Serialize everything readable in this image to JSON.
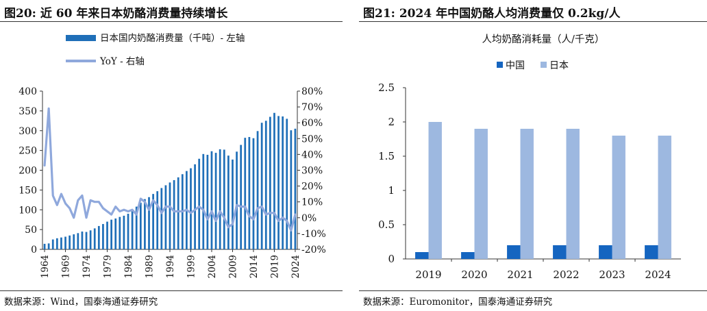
{
  "left": {
    "figure_title": "图20:  近 60 年来日本奶酪消费量持续增长",
    "source": "数据来源：Wind，国泰海通证券研究"
  },
  "right": {
    "figure_title": "图21:  2024 年中国奶酪人均消费量仅 0.2kg/人",
    "source": "数据来源：Euromonitor，国泰海通证券研究"
  },
  "colors": {
    "bar_dark": "#1f6fb8",
    "bar_light": "#9db8e0",
    "line": "#8fa8dc",
    "china_bar": "#1565c0"
  },
  "chart_data": [
    {
      "type": "bar",
      "title": "",
      "xlabel": "",
      "ylabel": "",
      "ylim": [
        0,
        400
      ],
      "y2lim": [
        -0.2,
        0.8
      ],
      "yticks": [
        "0",
        "50",
        "100",
        "150",
        "200",
        "250",
        "300",
        "350",
        "400"
      ],
      "y2ticks": [
        "-20%",
        "-10%",
        "0%",
        "10%",
        "20%",
        "30%",
        "40%",
        "50%",
        "60%",
        "70%",
        "80%"
      ],
      "xtick_labels": [
        "1964",
        "1969",
        "1974",
        "1979",
        "1984",
        "1989",
        "1994",
        "1999",
        "2004",
        "2009",
        "2014",
        "2019",
        "2024"
      ],
      "legend": "top-left",
      "x": [
        1964,
        1965,
        1966,
        1967,
        1968,
        1969,
        1970,
        1971,
        1972,
        1973,
        1974,
        1975,
        1976,
        1977,
        1978,
        1979,
        1980,
        1981,
        1982,
        1983,
        1984,
        1985,
        1986,
        1987,
        1988,
        1989,
        1990,
        1991,
        1992,
        1993,
        1994,
        1995,
        1996,
        1997,
        1998,
        1999,
        2000,
        2001,
        2002,
        2003,
        2004,
        2005,
        2006,
        2007,
        2008,
        2009,
        2010,
        2011,
        2012,
        2013,
        2014,
        2015,
        2016,
        2017,
        2018,
        2019,
        2020,
        2021,
        2022,
        2023,
        2024
      ],
      "series": [
        {
          "name": "日本国内奶酪消费量（千吨）- 左轴",
          "type": "bar",
          "axis": "left",
          "values": [
            14,
            15,
            25,
            28,
            30,
            32,
            35,
            38,
            41,
            45,
            44,
            48,
            53,
            59,
            64,
            70,
            75,
            78,
            82,
            85,
            90,
            98,
            108,
            118,
            127,
            132,
            140,
            147,
            155,
            162,
            169,
            175,
            182,
            190,
            198,
            205,
            215,
            229,
            241,
            239,
            248,
            244,
            253,
            252,
            237,
            227,
            247,
            264,
            282,
            284,
            281,
            299,
            320,
            325,
            335,
            345,
            337,
            336,
            330,
            301,
            305
          ],
          "color": "#1f6fb8"
        },
        {
          "name": "YoY - 右轴",
          "type": "line",
          "axis": "right",
          "values": [
            0.33,
            0.69,
            0.14,
            0.08,
            0.15,
            0.09,
            0.06,
            0.0,
            0.11,
            0.14,
            0.0,
            0.11,
            0.1,
            0.1,
            0.06,
            0.04,
            0.02,
            0.07,
            0.04,
            0.05,
            0.04,
            0.05,
            0.02,
            0.12,
            0.1,
            0.05,
            0.11,
            0.08,
            0.03,
            0.07,
            0.07,
            0.04,
            0.04,
            0.04,
            0.05,
            0.03,
            0.05,
            0.07,
            0.05,
            -0.01,
            0.04,
            -0.02,
            0.04,
            0.0,
            -0.06,
            -0.04,
            0.08,
            0.07,
            0.07,
            0.01,
            -0.01,
            0.06,
            0.07,
            0.02,
            0.03,
            0.03,
            -0.02,
            0.0,
            -0.02,
            -0.08,
            0.02
          ],
          "color": "#8fa8dc"
        }
      ]
    },
    {
      "type": "bar",
      "title": "人均奶酪消耗量（人/千克）",
      "xlabel": "",
      "ylabel": "",
      "ylim": [
        0,
        2.5
      ],
      "yticks": [
        "0",
        "0.5",
        "1",
        "1.5",
        "2",
        "2.5"
      ],
      "legend": "top",
      "categories": [
        "2019",
        "2020",
        "2021",
        "2022",
        "2023",
        "2024"
      ],
      "series": [
        {
          "name": "中国",
          "values": [
            0.1,
            0.1,
            0.2,
            0.2,
            0.2,
            0.2
          ],
          "color": "#1565c0"
        },
        {
          "name": "日本",
          "values": [
            2.0,
            1.9,
            1.9,
            1.9,
            1.8,
            1.8
          ],
          "color": "#9db8e0"
        }
      ]
    }
  ]
}
